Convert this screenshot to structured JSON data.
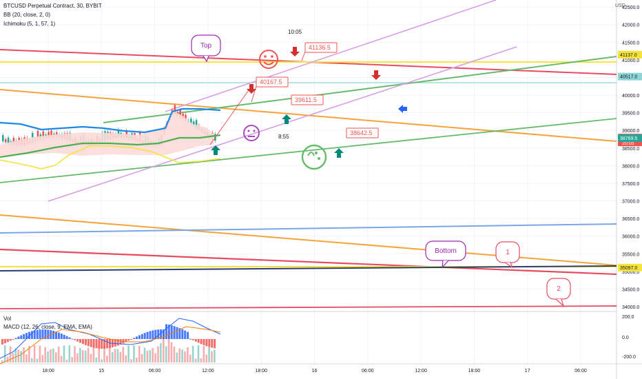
{
  "header": {
    "symbol": "BTCUSD Perpetual Contract, 30, BYBIT",
    "bb": "BB (20, close, 2, 0)",
    "ichimoku": "Ichimoku (5, 1, 57, 1)",
    "currency": "USD"
  },
  "sub": {
    "vol": "Vol",
    "macd": "MACD (12, 26, close, 9, EMA, EMA)"
  },
  "annotations": {
    "top": "Top",
    "bottom": "Bottom",
    "one": "1",
    "two": "2",
    "p1": "41136.5",
    "p2": "40167.5",
    "p3": "39611.5",
    "p4": "38642.5",
    "t1": "10:05",
    "t2": "8:55"
  },
  "colors": {
    "up": "#26a69a",
    "down": "#ef5350",
    "bb": "#1e88e5",
    "ichimoku_mid": "#4caf50",
    "yellow": "#f6e33a",
    "orange": "#f5a33a",
    "red": "#e84a5f",
    "green": "#66bb6a",
    "purple": "#d79ee6",
    "cyan": "#8fd6d6",
    "blue": "#78a6e8",
    "navy": "#2c3e70"
  },
  "chart_data": [
    {
      "type": "candlestick",
      "title": "BTCUSD Perpetual Contract, 30, BYBIT",
      "ylim": [
        33800,
        42700
      ],
      "y_ticks": [
        "42500.0",
        "42000.0",
        "41500.0",
        "41000.0",
        "40500.0",
        "40000.0",
        "39500.0",
        "39000.0",
        "38500.0",
        "38000.0",
        "37500.0",
        "37000.0",
        "36500.0",
        "36000.0",
        "35500.0",
        "35000.0",
        "34500.0",
        "34000.0"
      ],
      "x_ticks": [
        "18:00",
        "15",
        "06:00",
        "12:00",
        "18:00",
        "16",
        "06:00",
        "12:00",
        "18:00",
        "17",
        "06:00"
      ],
      "price_labels": [
        {
          "value": 41137.0,
          "text": "41137.0",
          "color": "#f6e33a"
        },
        {
          "value": 40517.0,
          "text": "40517.0",
          "color": "#8fd6d6"
        },
        {
          "value": 38785.0,
          "text": "38785.0",
          "sub": "20:05",
          "color": "#ef5350"
        },
        {
          "value": 38769.5,
          "text": "38769.5",
          "color": "#26a69a"
        },
        {
          "value": 35097.0,
          "text": "35097.0",
          "color": "#f6e33a"
        }
      ]
    },
    {
      "type": "bar",
      "title": "MACD (12, 26, close, 9, EMA, EMA)",
      "y_ticks": [
        "200.0",
        "0.0",
        "-200.0"
      ]
    }
  ]
}
